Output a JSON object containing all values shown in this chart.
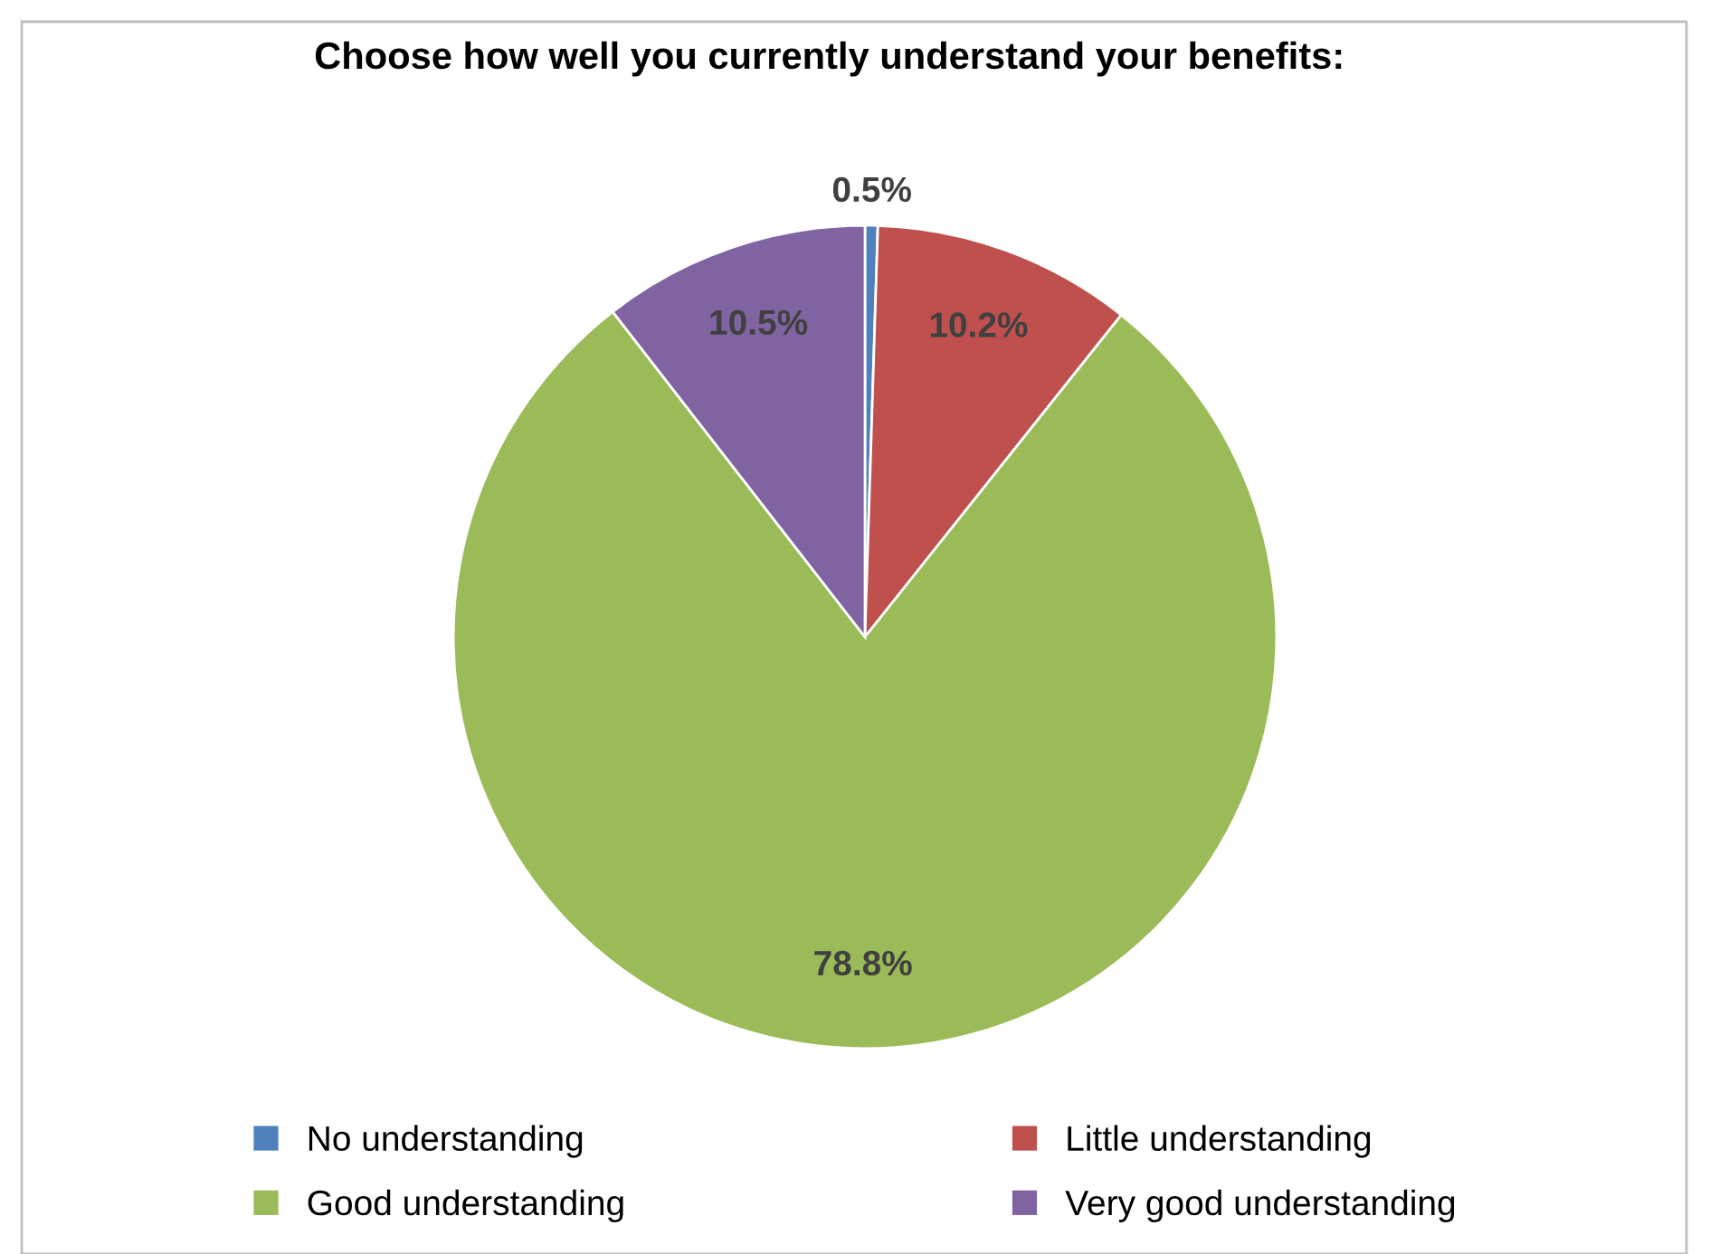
{
  "chart_data": {
    "type": "pie",
    "title": "Choose how well you currently understand your benefits:",
    "categories": [
      "No understanding",
      "Little understanding",
      "Good understanding",
      "Very good understanding"
    ],
    "values": [
      0.5,
      10.2,
      78.8,
      10.5
    ],
    "colors": [
      "#4f81bd",
      "#c0504d",
      "#9bbb59",
      "#8064a2"
    ],
    "value_labels": [
      "0.5%",
      "10.2%",
      "78.8%",
      "10.5%"
    ],
    "legend": "bottom"
  }
}
